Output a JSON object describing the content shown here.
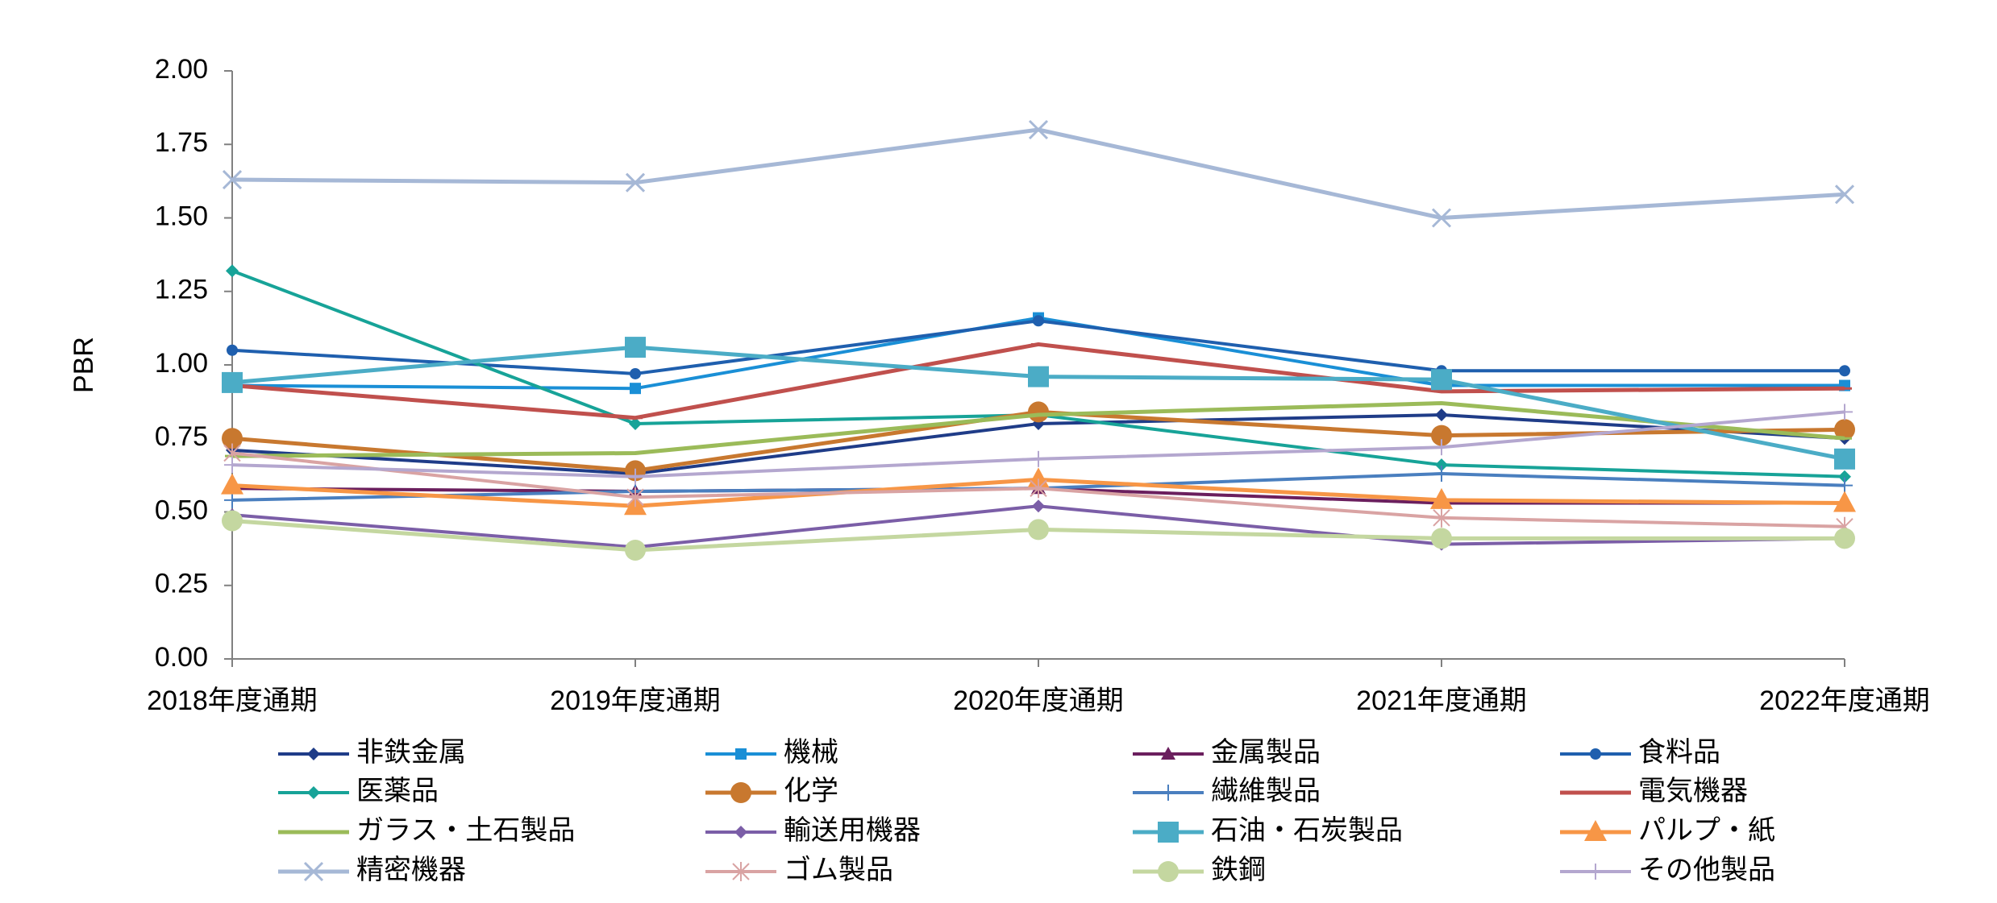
{
  "chart_data": {
    "type": "line",
    "title": "",
    "xlabel": "",
    "ylabel": "PBR",
    "ylim": [
      0,
      2
    ],
    "yticks": [
      "0.00",
      "0.25",
      "0.50",
      "0.75",
      "1.00",
      "1.25",
      "1.50",
      "1.75",
      "2.00"
    ],
    "categories": [
      "2018年度通期",
      "2019年度通期",
      "2020年度通期",
      "2021年度通期",
      "2022年度通期"
    ],
    "grid": false,
    "legend_position": "bottom",
    "series": [
      {
        "name": "非鉄金属",
        "color": "#1f3c88",
        "marker": "diamond",
        "values": [
          0.71,
          0.63,
          0.8,
          0.83,
          0.75
        ]
      },
      {
        "name": "機械",
        "color": "#1a8fd6",
        "marker": "square",
        "values": [
          0.93,
          0.92,
          1.16,
          0.93,
          0.93
        ]
      },
      {
        "name": "金属製品",
        "color": "#6b1f5e",
        "marker": "triangle",
        "values": [
          0.58,
          0.57,
          0.58,
          0.53,
          0.53
        ]
      },
      {
        "name": "食料品",
        "color": "#1f5fae",
        "marker": "circle",
        "values": [
          1.05,
          0.97,
          1.15,
          0.98,
          0.98
        ]
      },
      {
        "name": "医薬品",
        "color": "#17a398",
        "marker": "diamond",
        "values": [
          1.32,
          0.8,
          0.83,
          0.66,
          0.62
        ]
      },
      {
        "name": "化学",
        "color": "#c8782f",
        "marker": "circle-large",
        "values": [
          0.75,
          0.64,
          0.84,
          0.76,
          0.78
        ]
      },
      {
        "name": "繊維製品",
        "color": "#4a7fbf",
        "marker": "plus",
        "values": [
          0.54,
          0.57,
          0.58,
          0.63,
          0.59
        ]
      },
      {
        "name": "電気機器",
        "color": "#c0504d",
        "marker": "dash",
        "values": [
          0.93,
          0.82,
          1.07,
          0.91,
          0.92
        ]
      },
      {
        "name": "ガラス・土石製品",
        "color": "#9bbb59",
        "marker": "dash",
        "values": [
          0.69,
          0.7,
          0.83,
          0.87,
          0.75
        ]
      },
      {
        "name": "輸送用機器",
        "color": "#7b5ea7",
        "marker": "diamond",
        "values": [
          0.49,
          0.38,
          0.52,
          0.39,
          0.41
        ]
      },
      {
        "name": "石油・石炭製品",
        "color": "#4bacc6",
        "marker": "square-large",
        "values": [
          0.94,
          1.06,
          0.96,
          0.95,
          0.68
        ]
      },
      {
        "name": "パルプ・紙",
        "color": "#f79646",
        "marker": "triangle-large",
        "values": [
          0.59,
          0.52,
          0.61,
          0.54,
          0.53
        ]
      },
      {
        "name": "精密機器",
        "color": "#a6b8d6",
        "marker": "x",
        "values": [
          1.63,
          1.62,
          1.8,
          1.5,
          1.58
        ]
      },
      {
        "name": "ゴム製品",
        "color": "#d9a3a3",
        "marker": "asterisk",
        "values": [
          0.7,
          0.55,
          0.58,
          0.48,
          0.45
        ]
      },
      {
        "name": "鉄鋼",
        "color": "#c4d7a0",
        "marker": "circle-large",
        "values": [
          0.47,
          0.37,
          0.44,
          0.41,
          0.41
        ]
      },
      {
        "name": "その他製品",
        "color": "#b4a7cf",
        "marker": "plus",
        "values": [
          0.66,
          0.62,
          0.68,
          0.72,
          0.84
        ]
      }
    ]
  }
}
